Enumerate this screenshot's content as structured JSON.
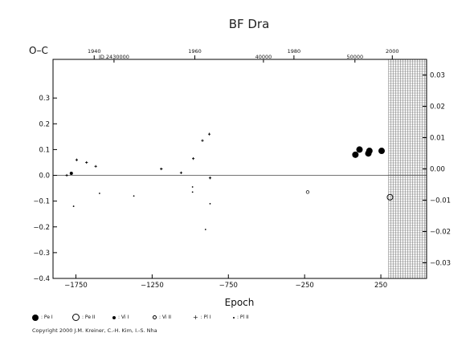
{
  "chart_data": {
    "type": "scatter",
    "title": "BF Dra",
    "ylabel": "O–C",
    "xlabel": "Epoch",
    "xlim": [
      -1900,
      550
    ],
    "ylim": [
      -0.4,
      0.45
    ],
    "ylim_right": [
      -0.035,
      0.035
    ],
    "left_ticks": [
      "0.3",
      "0.2",
      "0.1",
      "0.0",
      "−0.1",
      "−0.2",
      "−0.3",
      "−0.4"
    ],
    "left_tick_values": [
      0.3,
      0.2,
      0.1,
      0.0,
      -0.1,
      -0.2,
      -0.3,
      -0.4
    ],
    "right_ticks": [
      "0.03",
      "0.02",
      "0.01",
      "0.00",
      "−0.01",
      "−0.02",
      "−0.03"
    ],
    "right_tick_values": [
      0.03,
      0.02,
      0.01,
      0.0,
      -0.01,
      -0.02,
      -0.03
    ],
    "bottom_ticks": [
      "−1750",
      "−1250",
      "−750",
      "−250",
      "250"
    ],
    "bottom_tick_values": [
      -1750,
      -1250,
      -750,
      -250,
      250
    ],
    "top_year_ticks": [
      "1940",
      "1960",
      "1980",
      "2000"
    ],
    "top_year_epochs": [
      -1630,
      -970,
      -320,
      325
    ],
    "jd_ticks": [
      "JD 2430000",
      "40000",
      "50000"
    ],
    "jd_tick_epochs": [
      -1500,
      -520,
      80
    ],
    "hatch_from": 300,
    "series": [
      {
        "name": ": Pe I",
        "marker": "filled-large",
        "points": [
          [
            83,
            0.08
          ],
          [
            110,
            0.1
          ],
          [
            168,
            0.085
          ],
          [
            175,
            0.095
          ],
          [
            255,
            0.095
          ]
        ]
      },
      {
        "name": ": Pe II",
        "marker": "open-large",
        "points": [
          [
            310,
            -0.085
          ]
        ]
      },
      {
        "name": ": Vi I",
        "marker": "filled-small",
        "points": [
          [
            -1780,
            0.008
          ]
        ]
      },
      {
        "name": ": Vi II",
        "marker": "open-small",
        "points": [
          [
            -230,
            -0.065
          ]
        ]
      },
      {
        "name": ": Pl I",
        "marker": "plus",
        "points": [
          [
            -1810,
            0.0
          ],
          [
            -1745,
            0.06
          ],
          [
            -1680,
            0.05
          ],
          [
            -1620,
            0.035
          ],
          [
            -1190,
            0.025
          ],
          [
            -1060,
            0.01
          ],
          [
            -980,
            0.065
          ],
          [
            -920,
            0.135
          ],
          [
            -875,
            0.16
          ],
          [
            -870,
            -0.01
          ]
        ]
      },
      {
        "name": ": Pl II",
        "marker": "dot",
        "points": [
          [
            -1765,
            -0.12
          ],
          [
            -1595,
            -0.07
          ],
          [
            -1370,
            -0.08
          ],
          [
            -985,
            -0.045
          ],
          [
            -985,
            -0.065
          ],
          [
            -900,
            -0.21
          ],
          [
            -870,
            -0.11
          ]
        ]
      }
    ]
  },
  "copyright": "Copyright 2000 J.M. Kreiner, C.-H. Kim, I.-S. Nha"
}
